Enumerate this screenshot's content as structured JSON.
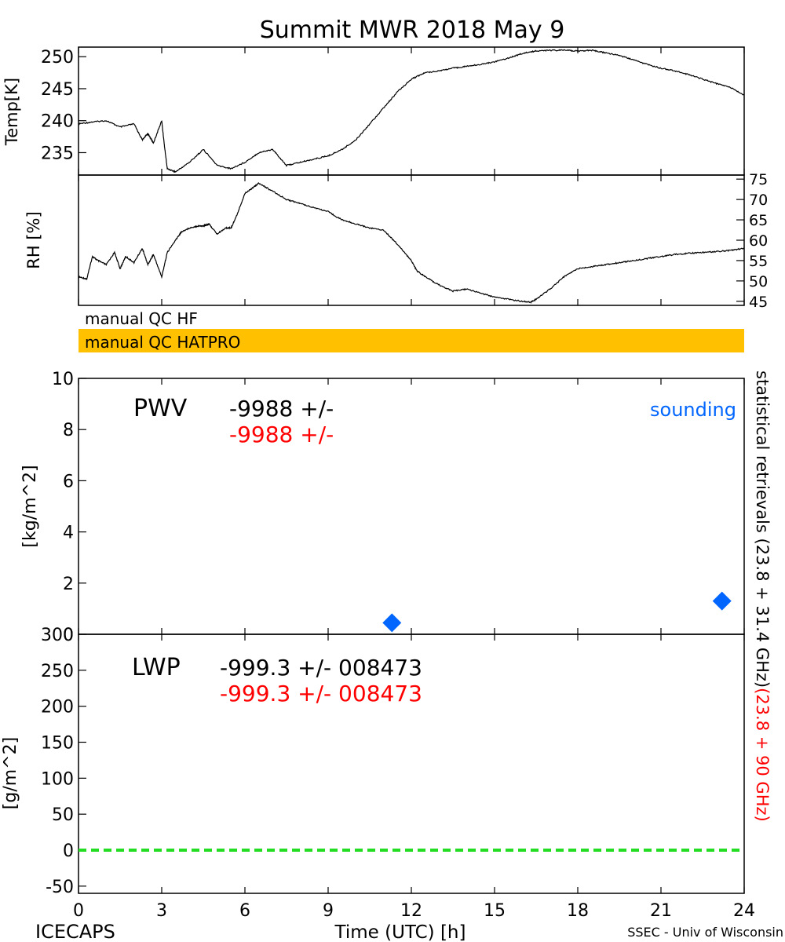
{
  "title": "Summit MWR 2018 May  9",
  "footer": {
    "left": "ICECAPS",
    "center": "Time (UTC) [h]",
    "right": "SSEC - Univ of Wisconsin"
  },
  "qc_bars": [
    {
      "label": "manual QC HF",
      "color": "#ffffff"
    },
    {
      "label": "manual QC HATPRO",
      "color": "#ffc000"
    }
  ],
  "side_label": {
    "black": "statistical retrievals (23.8 + 31.4 GHz)",
    "red": "(23.8 + 90 GHz)"
  },
  "colors": {
    "primary": "#000000",
    "secondary": "#ff0000",
    "sounding": "#0066ff",
    "zero_line": "#22dd22",
    "qc_hatpro": "#ffc000"
  },
  "chart_data": [
    {
      "panel": "temperature",
      "type": "line",
      "ylabel": "Temp[K]",
      "ylim": [
        231.5,
        251.5
      ],
      "xlim": [
        0,
        24
      ],
      "yticks": [
        235,
        240,
        245,
        250
      ],
      "y_axis_side": "left",
      "x": [
        0.0,
        0.5,
        1.0,
        1.5,
        2.0,
        2.3,
        2.5,
        2.7,
        3.0,
        3.1,
        3.2,
        3.5,
        4.0,
        4.5,
        5.0,
        5.5,
        6.0,
        6.5,
        7.0,
        7.5,
        8.0,
        8.5,
        9.0,
        9.5,
        10.0,
        10.5,
        11.0,
        11.5,
        12.0,
        12.5,
        13.0,
        13.5,
        14.0,
        14.5,
        15.0,
        15.5,
        16.0,
        16.5,
        17.0,
        17.5,
        18.0,
        18.5,
        19.0,
        19.5,
        20.0,
        20.5,
        21.0,
        21.5,
        22.0,
        22.5,
        23.0,
        23.5,
        24.0
      ],
      "y": [
        239.5,
        239.8,
        240.0,
        239.0,
        239.5,
        237.0,
        238.0,
        236.5,
        240.0,
        236.0,
        232.5,
        232.0,
        233.5,
        235.5,
        233.0,
        232.5,
        233.5,
        235.0,
        235.5,
        233.0,
        233.5,
        234.0,
        234.5,
        235.5,
        237.0,
        239.5,
        242.0,
        244.5,
        246.5,
        247.5,
        247.8,
        248.2,
        248.5,
        248.8,
        249.2,
        249.8,
        250.5,
        250.9,
        251.0,
        251.0,
        250.9,
        251.0,
        250.6,
        250.2,
        249.5,
        248.8,
        248.2,
        247.8,
        247.2,
        246.5,
        245.8,
        245.2,
        244.0
      ]
    },
    {
      "panel": "relative_humidity",
      "type": "line",
      "ylabel": "RH [%]",
      "ylim": [
        44,
        76
      ],
      "xlim": [
        0,
        24
      ],
      "yticks": [
        45,
        50,
        55,
        60,
        65,
        70,
        75
      ],
      "y_axis_side": "right",
      "x": [
        0.0,
        0.3,
        0.5,
        0.7,
        1.0,
        1.3,
        1.5,
        1.7,
        2.0,
        2.3,
        2.5,
        2.7,
        3.0,
        3.2,
        3.5,
        3.7,
        4.0,
        4.3,
        4.5,
        4.7,
        5.0,
        5.3,
        5.5,
        5.7,
        6.0,
        6.3,
        6.5,
        7.0,
        7.5,
        8.0,
        8.5,
        9.0,
        9.5,
        10.0,
        10.5,
        11.0,
        11.5,
        12.0,
        12.2,
        12.5,
        13.0,
        13.5,
        14.0,
        14.5,
        15.0,
        15.5,
        16.0,
        16.3,
        16.5,
        17.0,
        17.5,
        18.0,
        18.5,
        19.0,
        19.5,
        20.0,
        20.5,
        21.0,
        21.5,
        22.0,
        22.5,
        23.0,
        23.5,
        24.0
      ],
      "y": [
        51.0,
        50.5,
        56.0,
        55.0,
        54.0,
        57.0,
        53.0,
        56.0,
        54.5,
        58.0,
        54.0,
        56.5,
        51.0,
        57.0,
        60.0,
        62.0,
        63.0,
        63.5,
        63.5,
        64.0,
        61.5,
        63.0,
        63.0,
        66.0,
        71.5,
        73.0,
        74.0,
        72.0,
        70.0,
        69.0,
        68.0,
        67.0,
        65.0,
        64.0,
        63.0,
        62.5,
        59.0,
        55.0,
        52.5,
        51.0,
        49.0,
        47.5,
        48.0,
        47.0,
        46.0,
        45.5,
        45.0,
        44.8,
        45.5,
        48.0,
        51.0,
        53.0,
        53.5,
        54.0,
        54.5,
        55.0,
        55.5,
        56.0,
        56.5,
        56.8,
        57.0,
        57.2,
        57.5,
        58.0
      ]
    },
    {
      "panel": "pwv",
      "type": "scatter",
      "label": "PWV",
      "ylabel": "[kg/m^2]",
      "ylim": [
        0,
        10
      ],
      "xlim": [
        0,
        24
      ],
      "yticks": [
        0,
        2,
        4,
        6,
        8,
        10
      ],
      "value_black": "-9988 +/-",
      "value_red": "-9988 +/-",
      "legend": "sounding",
      "legend_position": "top-right",
      "series": [
        {
          "name": "sounding",
          "x": [
            11.3,
            23.2
          ],
          "y": [
            0.45,
            1.3
          ]
        }
      ]
    },
    {
      "panel": "lwp",
      "type": "line",
      "label": "LWP",
      "ylabel": "[g/m^2]",
      "ylim": [
        -60,
        300
      ],
      "xlim": [
        0,
        24
      ],
      "yticks": [
        -50,
        0,
        50,
        100,
        150,
        200,
        250,
        300
      ],
      "xticks": [
        0,
        3,
        6,
        9,
        12,
        15,
        18,
        21,
        24
      ],
      "value_black": "-999.3 +/- 008473",
      "value_red": "-999.3 +/- 008473",
      "zero_line": {
        "x": [
          0,
          24
        ],
        "y": [
          0,
          0
        ]
      }
    }
  ]
}
